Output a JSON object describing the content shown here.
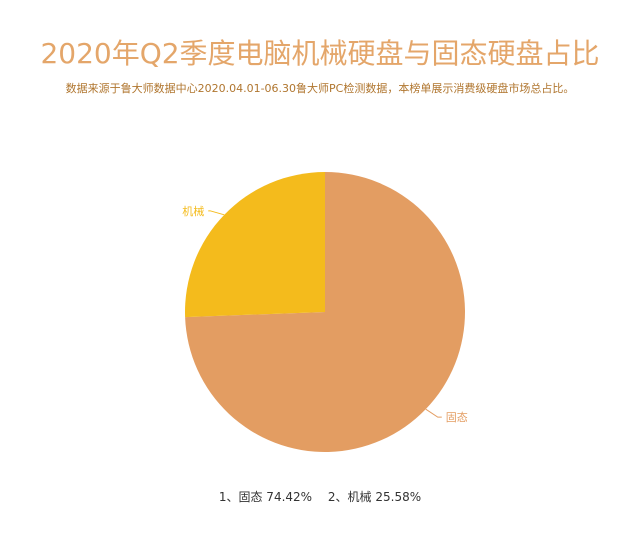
{
  "chart_data": {
    "type": "pie",
    "title": "2020年Q2季度电脑机械硬盘与固态硬盘占比",
    "subtitle": "数据来源于鲁大师数据中心2020.04.01-06.30鲁大师PC检测数据，本榜单展示消费级硬盘市场总占比。",
    "slices": [
      {
        "label": "固态",
        "value": 74.42,
        "color": "#e39d62"
      },
      {
        "label": "机械",
        "value": 25.58,
        "color": "#f4bb1c"
      }
    ],
    "footer": [
      "1、固态 74.42%",
      "2、机械 25.58%"
    ],
    "label_colors": {
      "固态": "#e39d62",
      "机械": "#f4bb1c"
    }
  }
}
